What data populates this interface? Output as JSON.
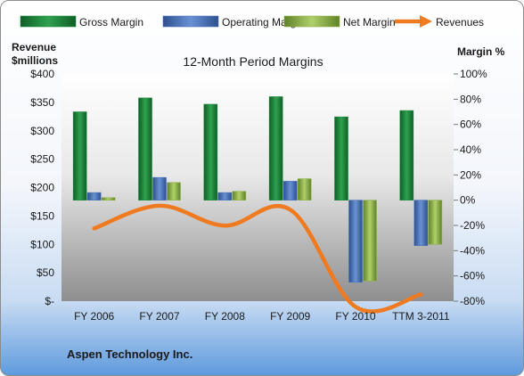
{
  "chart_data": {
    "type": "bar",
    "title": "12-Month Period Margins",
    "categories": [
      "FY 2006",
      "FY 2007",
      "FY 2008",
      "FY 2009",
      "FY 2010",
      "TTM 3-2011"
    ],
    "series": [
      {
        "name": "Gross Margin",
        "kind": "bar",
        "axis": "right",
        "color": "#1e8a3c",
        "values": [
          70,
          81,
          76,
          82,
          66,
          71
        ]
      },
      {
        "name": "Operating Margin",
        "kind": "bar",
        "axis": "right",
        "color": "#4a72b8",
        "values": [
          6,
          18,
          6,
          15,
          -65,
          -36
        ]
      },
      {
        "name": "Net Margin",
        "kind": "bar",
        "axis": "right",
        "color": "#8fb24a",
        "values": [
          2,
          14,
          7,
          17,
          -64,
          -35
        ]
      },
      {
        "name": "Revenues",
        "kind": "line",
        "axis": "left",
        "color": "#f07a20",
        "values": [
          128,
          168,
          133,
          161,
          -10,
          12
        ]
      }
    ],
    "y_left": {
      "label": "Revenue $millions",
      "label_lines": [
        "Revenue",
        "$millions"
      ],
      "ylim": [
        0,
        400
      ],
      "ticks": [
        0,
        50,
        100,
        150,
        200,
        250,
        300,
        350,
        400
      ],
      "tick_labels": [
        "$-",
        "$50",
        "$100",
        "$150",
        "$200",
        "$250",
        "$300",
        "$350",
        "$400"
      ]
    },
    "y_right": {
      "label": "Margin %",
      "ylim": [
        -80,
        100
      ],
      "ticks": [
        -80,
        -60,
        -40,
        -20,
        0,
        20,
        40,
        60,
        80,
        100
      ],
      "tick_labels": [
        "-80%",
        "-60%",
        "-40%",
        "-20%",
        "0%",
        "20%",
        "40%",
        "60%",
        "80%",
        "100%"
      ]
    },
    "legend_position": "top",
    "grid": false
  },
  "footer_text": "Aspen Technology Inc."
}
